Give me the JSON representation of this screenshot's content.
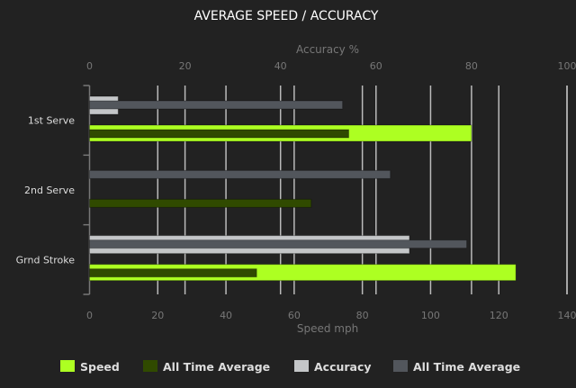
{
  "chart_data": {
    "type": "bar",
    "orientation": "horizontal",
    "title": "AVERAGE SPEED / ACCURACY",
    "categories": [
      "1st Serve",
      "2nd Serve",
      "Grnd Stroke"
    ],
    "x_top": {
      "label": "Accuracy %",
      "range": [
        0,
        100
      ],
      "ticks": [
        0,
        20,
        40,
        60,
        80,
        100
      ]
    },
    "x_bottom": {
      "label": "Speed mph",
      "range": [
        0,
        140
      ],
      "ticks": [
        0,
        20,
        40,
        60,
        80,
        100,
        120,
        140
      ]
    },
    "grid": true,
    "legend_position": "bottom",
    "series": [
      {
        "name": "Speed",
        "axis": "bottom",
        "color": "#adff22",
        "values": [
          112,
          null,
          125
        ]
      },
      {
        "name": "All Time Average",
        "axis": "bottom",
        "color": "#304a00",
        "values": [
          76,
          65,
          49
        ]
      },
      {
        "name": "Accuracy",
        "axis": "top",
        "color": "#c4c6c8",
        "values": [
          6,
          null,
          67
        ]
      },
      {
        "name": "All Time Average",
        "axis": "top",
        "color": "#52565c",
        "values": [
          53,
          63,
          79
        ]
      }
    ]
  }
}
